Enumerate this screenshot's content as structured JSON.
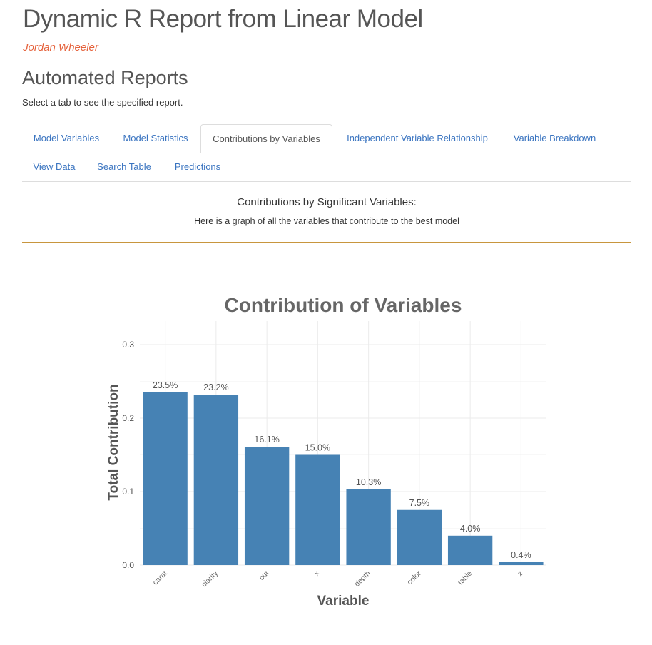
{
  "header": {
    "title": "Dynamic R Report from Linear Model",
    "author": "Jordan Wheeler"
  },
  "section": {
    "title": "Automated Reports",
    "instructions": "Select a tab to see the specified report."
  },
  "tabs": [
    {
      "label": "Model Variables",
      "active": false
    },
    {
      "label": "Model Statistics",
      "active": false
    },
    {
      "label": "Contributions by Variables",
      "active": true
    },
    {
      "label": "Independent Variable Relationship",
      "active": false
    },
    {
      "label": "Variable Breakdown",
      "active": false
    },
    {
      "label": "View Data",
      "active": false
    },
    {
      "label": "Search Table",
      "active": false
    },
    {
      "label": "Predictions",
      "active": false
    }
  ],
  "panel": {
    "heading": "Contributions by Significant Variables:",
    "subtext": "Here is a graph of all the variables that contribute to the best model"
  },
  "colors": {
    "bar": "#4682b4",
    "link": "#3a74c0",
    "accent_line": "#c8963e",
    "author": "#e5623c"
  },
  "chart_data": {
    "type": "bar",
    "title": "Contribution of Variables",
    "xlabel": "Variable",
    "ylabel": "Total Contribution",
    "ylim": [
      0,
      0.3
    ],
    "yticks": [
      0.0,
      0.1,
      0.2,
      0.3
    ],
    "ytick_labels": [
      "0.0",
      "0.1",
      "0.2",
      "0.3"
    ],
    "grid": true,
    "categories": [
      "carat",
      "clarity",
      "cut",
      "x",
      "depth",
      "color",
      "table",
      "z"
    ],
    "values": [
      0.235,
      0.232,
      0.161,
      0.15,
      0.103,
      0.075,
      0.04,
      0.004
    ],
    "labels": [
      "23.5%",
      "23.2%",
      "16.1%",
      "15.0%",
      "10.3%",
      "7.5%",
      "4.0%",
      "0.4%"
    ]
  }
}
